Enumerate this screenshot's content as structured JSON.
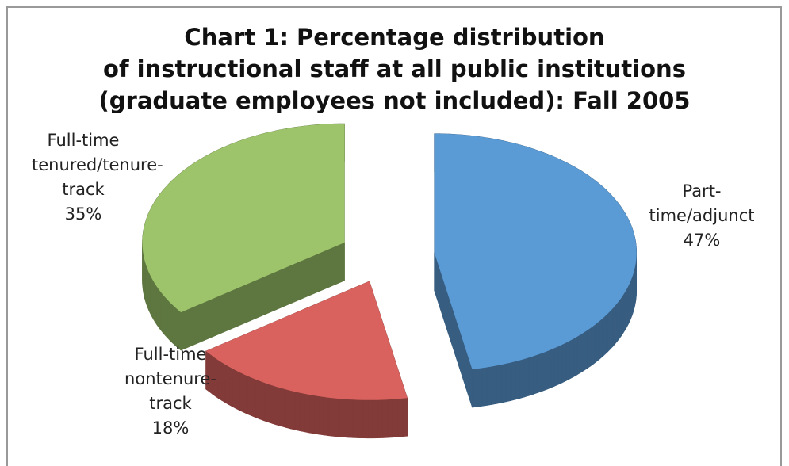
{
  "chart_data": {
    "type": "pie",
    "title": [
      "Chart 1: Percentage distribution",
      "of instructional staff at all public institutions",
      "(graduate employees not included): Fall 2005"
    ],
    "categories": [
      "Part-time/adjunct",
      "Full-time nontenure-track",
      "Full-time tenured/tenure-track"
    ],
    "values": [
      47,
      18,
      35
    ],
    "value_labels": [
      "47%",
      "18%",
      "35%"
    ],
    "colors": [
      "#5b9bd5",
      "#d9625e",
      "#9dc46a"
    ],
    "exploded": true,
    "three_d": true
  }
}
